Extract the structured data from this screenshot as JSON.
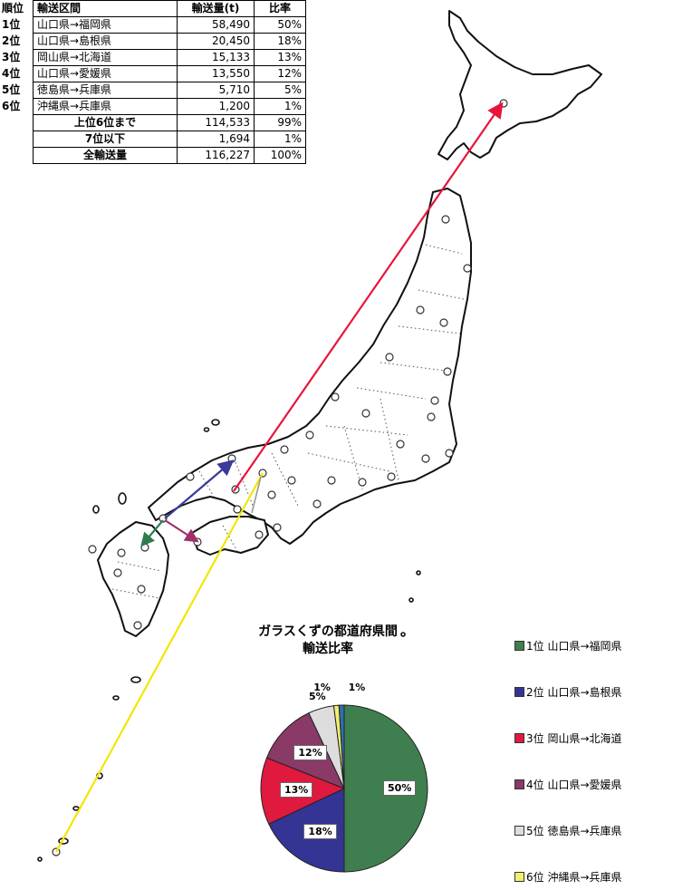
{
  "table": {
    "headers": {
      "rank": "順位",
      "route": "輸送区間",
      "volume": "輸送量(t)",
      "ratio": "比率"
    },
    "rows": [
      {
        "rank": "1位",
        "route": "山口県→福岡県",
        "volume": "58,490",
        "ratio": "50%"
      },
      {
        "rank": "2位",
        "route": "山口県→島根県",
        "volume": "20,450",
        "ratio": "18%"
      },
      {
        "rank": "3位",
        "route": "岡山県→北海道",
        "volume": "15,133",
        "ratio": "13%"
      },
      {
        "rank": "4位",
        "route": "山口県→愛媛県",
        "volume": "13,550",
        "ratio": "12%"
      },
      {
        "rank": "5位",
        "route": "徳島県→兵庫県",
        "volume": "5,710",
        "ratio": "5%"
      },
      {
        "rank": "6位",
        "route": "沖縄県→兵庫県",
        "volume": "1,200",
        "ratio": "1%"
      }
    ],
    "summary": [
      {
        "label": "上位6位まで",
        "volume": "114,533",
        "ratio": "99%"
      },
      {
        "label": "7位以下",
        "volume": "1,694",
        "ratio": "1%"
      },
      {
        "label": "全輸送量",
        "volume": "116,227",
        "ratio": "100%"
      }
    ]
  },
  "map": {
    "routes": [
      {
        "name": "山口県→福岡県",
        "color": "#2e7d4f"
      },
      {
        "name": "山口県→島根県",
        "color": "#3b3b9a"
      },
      {
        "name": "岡山県→北海道",
        "color": "#e8143c"
      },
      {
        "name": "山口県→愛媛県",
        "color": "#a0306a"
      },
      {
        "name": "徳島県→兵庫県",
        "color": "#9a9a9a"
      },
      {
        "name": "沖縄県→兵庫県",
        "color": "#f2e600"
      }
    ]
  },
  "chart_data": {
    "type": "pie",
    "title_line1": "ガラスくずの都道府県間",
    "title_line2": "輸送比率",
    "slices": [
      {
        "label": "1位 山口県→福岡県",
        "value": 50,
        "display": "50%",
        "color": "#3f7f4f"
      },
      {
        "label": "2位 山口県→島根県",
        "value": 18,
        "display": "18%",
        "color": "#343494"
      },
      {
        "label": "3位 岡山県→北海道",
        "value": 13,
        "display": "13%",
        "color": "#e0193f"
      },
      {
        "label": "4位 山口県→愛媛県",
        "value": 12,
        "display": "12%",
        "color": "#8a3a66"
      },
      {
        "label": "5位 徳島県→兵庫県",
        "value": 5,
        "display": "5%",
        "color": "#dddddd"
      },
      {
        "label": "6位 沖縄県→兵庫県",
        "value": 1,
        "display": "1%",
        "color": "#f5ee6e"
      },
      {
        "label": "",
        "value": 1,
        "display": "1%",
        "color": "#2f6fb0"
      }
    ],
    "legend_placement": "right"
  }
}
